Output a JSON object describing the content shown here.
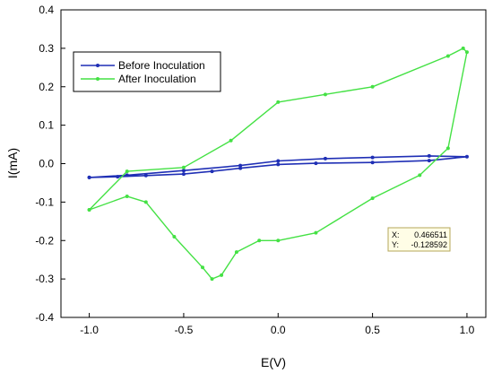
{
  "chart_data": {
    "type": "line",
    "xlabel": "E(V)",
    "ylabel": "I(mA)",
    "xlim": [
      -1.15,
      1.1
    ],
    "ylim": [
      -0.4,
      0.4
    ],
    "x_ticks": [
      -1.0,
      -0.5,
      0.0,
      0.5,
      1.0
    ],
    "x_tick_labels": [
      "-1.0",
      "-0.5",
      "0.0",
      "0.5",
      "1.0"
    ],
    "y_ticks": [
      -0.4,
      -0.3,
      -0.2,
      -0.1,
      0.0,
      0.1,
      0.2,
      0.3,
      0.4
    ],
    "y_tick_labels": [
      "-0.4",
      "-0.3",
      "-0.2",
      "-0.1",
      "0.0",
      "0.1",
      "0.2",
      "0.3",
      "0.4"
    ],
    "grid": false,
    "legend_position": "top-left",
    "series": [
      {
        "name": "Before Inoculation",
        "color": "#1f2fb5",
        "x": [
          -1.0,
          -0.85,
          -0.7,
          -0.5,
          -0.35,
          -0.2,
          0.0,
          0.2,
          0.5,
          0.8,
          1.0,
          0.8,
          0.5,
          0.25,
          0.0,
          -0.2,
          -0.5,
          -0.8,
          -1.0
        ],
        "y": [
          -0.036,
          -0.034,
          -0.031,
          -0.027,
          -0.02,
          -0.012,
          -0.002,
          0.001,
          0.003,
          0.008,
          0.018,
          0.02,
          0.016,
          0.013,
          0.007,
          -0.005,
          -0.018,
          -0.03,
          -0.036
        ]
      },
      {
        "name": "After Inoculation",
        "color": "#44e144",
        "x": [
          -1.0,
          -0.8,
          -0.7,
          -0.55,
          -0.4,
          -0.35,
          -0.3,
          -0.22,
          -0.1,
          0.0,
          0.2,
          0.5,
          0.75,
          0.9,
          1.0,
          0.98,
          0.9,
          0.5,
          0.25,
          0.0,
          -0.25,
          -0.5,
          -0.8,
          -1.0
        ],
        "y": [
          -0.12,
          -0.085,
          -0.1,
          -0.19,
          -0.27,
          -0.3,
          -0.29,
          -0.23,
          -0.2,
          -0.2,
          -0.18,
          -0.09,
          -0.03,
          0.04,
          0.29,
          0.3,
          0.28,
          0.2,
          0.18,
          0.16,
          0.06,
          -0.01,
          -0.02,
          -0.12
        ]
      }
    ],
    "data_tip": {
      "x_label": "X:",
      "x_value": "0.466511",
      "y_label": "Y:",
      "y_value": "-0.128592"
    }
  }
}
